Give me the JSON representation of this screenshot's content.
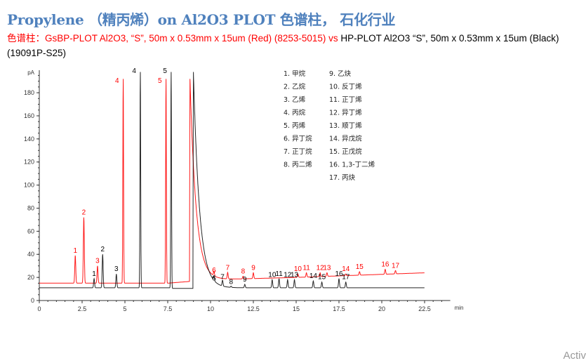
{
  "header": {
    "title": "Propylene （精丙烯）on Al2O3 PLOT 色谱柱， 石化行业",
    "subtitle_red": "色谱柱：GsBP-PLOT Al2O3, “S”, 50m x 0.53mm x 15um (Red) (8253-5015) vs",
    "subtitle_black": " HP-PLOT Al2O3 “S”, 50m x 0.53mm x 15um (Black) (19091P-S25)"
  },
  "watermark": "Activ",
  "chart_data": {
    "type": "line",
    "xlabel": "min",
    "ylabel": "pA",
    "xlim": [
      0,
      24
    ],
    "ylim": [
      0,
      198
    ],
    "xticks": [
      "0",
      "2.5",
      "5",
      "7.5",
      "10",
      "12.5",
      "15",
      "17.5",
      "20",
      "22.5"
    ],
    "yticks": [
      "0",
      "20",
      "40",
      "60",
      "80",
      "100",
      "120",
      "140",
      "160",
      "180"
    ],
    "grid": false,
    "legend": {
      "placement": "top-center",
      "col1": [
        "1. 甲烷",
        "2. 乙烷",
        "3. 乙烯",
        "4. 丙烷",
        "5. 丙烯",
        "6. 异丁烷",
        "7. 正丁烷",
        "8. 丙二烯"
      ],
      "col2": [
        "9. 乙炔",
        "10. 反丁烯",
        "11. 正丁烯",
        "12. 异丁烯",
        "13. 顺丁烯",
        "14. 异戊烷",
        "15. 正戊烷",
        "16. 1,3-丁二烯",
        "17. 丙炔"
      ]
    },
    "series": [
      {
        "color": "#ff0000",
        "baseline": [
          [
            0,
            15
          ],
          [
            7.5,
            15
          ],
          [
            10,
            18
          ],
          [
            15,
            20
          ],
          [
            22.5,
            24
          ]
        ],
        "solvent_tail": {
          "x": 8.8,
          "top": 192
        },
        "peaks": [
          {
            "label": "1",
            "x": 2.1,
            "y": 39
          },
          {
            "label": "2",
            "x": 2.6,
            "y": 72
          },
          {
            "label": "3",
            "x": 3.4,
            "y": 30
          },
          {
            "label": "4",
            "x": 4.9,
            "y": 192
          },
          {
            "label": "5",
            "x": 7.4,
            "y": 192
          },
          {
            "label": "6",
            "x": 10.2,
            "y": 22
          },
          {
            "label": "7",
            "x": 11.0,
            "y": 24
          },
          {
            "label": "8",
            "x": 11.9,
            "y": 21
          },
          {
            "label": "9",
            "x": 12.5,
            "y": 24
          },
          {
            "label": "10",
            "x": 15.1,
            "y": 23
          },
          {
            "label": "11",
            "x": 15.6,
            "y": 24
          },
          {
            "label": "12",
            "x": 16.4,
            "y": 24
          },
          {
            "label": "13",
            "x": 16.8,
            "y": 24
          },
          {
            "label": "14",
            "x": 17.9,
            "y": 23
          },
          {
            "label": "15",
            "x": 18.7,
            "y": 25
          },
          {
            "label": "16",
            "x": 20.2,
            "y": 27
          },
          {
            "label": "17",
            "x": 20.8,
            "y": 26
          }
        ]
      },
      {
        "color": "#000000",
        "baseline": [
          [
            0,
            11
          ],
          [
            7.7,
            11
          ],
          [
            7.7,
            10.5
          ],
          [
            9.0,
            10.5
          ],
          [
            10,
            11
          ],
          [
            22.5,
            11
          ]
        ],
        "solvent_tail": {
          "x": 9.0,
          "top": 198
        },
        "peaks": [
          {
            "label": "1",
            "x": 3.2,
            "y": 19
          },
          {
            "label": "2",
            "x": 3.7,
            "y": 40
          },
          {
            "label": "3",
            "x": 4.5,
            "y": 23
          },
          {
            "label": "4",
            "x": 5.9,
            "y": 198
          },
          {
            "label": "5",
            "x": 7.7,
            "y": 198
          },
          {
            "label": "6",
            "x": 10.2,
            "y": 15
          },
          {
            "label": "7",
            "x": 10.7,
            "y": 16
          },
          {
            "label": "8",
            "x": 11.2,
            "y": 12
          },
          {
            "label": "9",
            "x": 12.0,
            "y": 14
          },
          {
            "label": "10",
            "x": 13.6,
            "y": 18
          },
          {
            "label": "11",
            "x": 14.0,
            "y": 19
          },
          {
            "label": "12",
            "x": 14.5,
            "y": 18
          },
          {
            "label": "13",
            "x": 14.9,
            "y": 18
          },
          {
            "label": "14",
            "x": 16.0,
            "y": 17
          },
          {
            "label": "15",
            "x": 16.5,
            "y": 16
          },
          {
            "label": "16",
            "x": 17.5,
            "y": 19
          },
          {
            "label": "17",
            "x": 17.9,
            "y": 16
          }
        ]
      }
    ]
  }
}
